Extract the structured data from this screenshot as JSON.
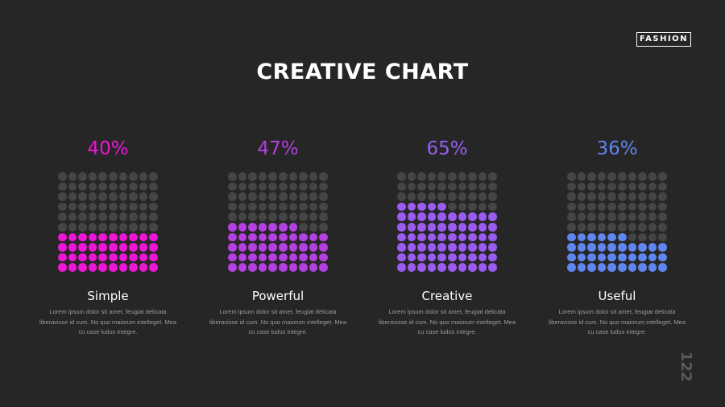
{
  "brand": "FASHION",
  "title": "CREATIVE CHART",
  "page_number": "122",
  "chart_data": {
    "type": "waffle",
    "grid": [
      10,
      10
    ],
    "series": [
      {
        "name": "Simple",
        "value": 40,
        "label": "40%",
        "color": "#ee16d6",
        "description": "Lorem ipsum dolor sit amet, feugiat delicata liberavisse id cum. No quo maiorum intelleget. Mea cu case ludus integre."
      },
      {
        "name": "Powerful",
        "value": 47,
        "label": "47%",
        "color": "#b340e0",
        "description": "Lorem ipsum dolor sit amet, feugiat delicata liberavisse id cum. No quo maiorum intelleget. Mea cu case ludus integre."
      },
      {
        "name": "Creative",
        "value": 65,
        "label": "65%",
        "color": "#9a5cf0",
        "description": "Lorem ipsum dolor sit amet, feugiat delicata liberavisse id cum. No quo maiorum intelleget. Mea cu case ludus integre."
      },
      {
        "name": "Useful",
        "value": 36,
        "label": "36%",
        "color": "#5f86ee",
        "description": "Lorem ipsum dolor sit amet, feugiat delicata liberavisse id cum. No quo maiorum intelleget. Mea cu case ludus integre."
      }
    ],
    "empty_color": "#454545"
  }
}
